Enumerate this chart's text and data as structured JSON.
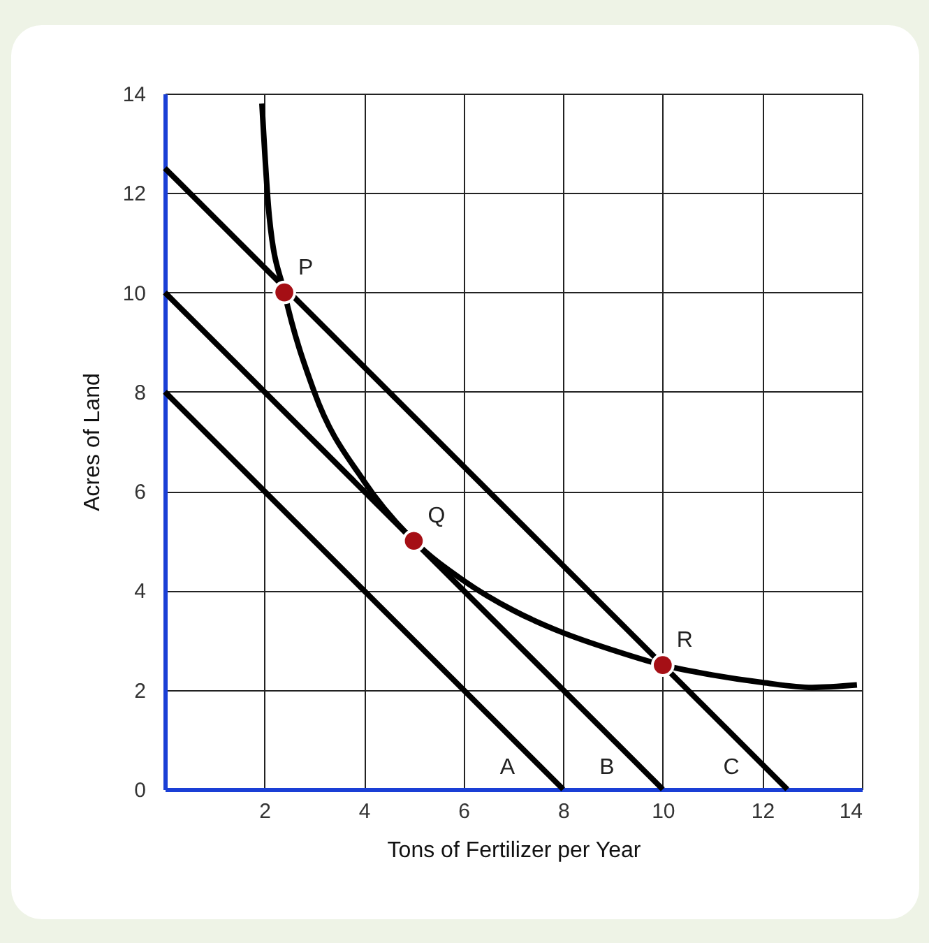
{
  "chart_data": {
    "type": "line",
    "xlabel": "Tons of Fertilizer per Year",
    "ylabel": "Acres of Land",
    "xlim": [
      0,
      14
    ],
    "ylim": [
      0,
      14
    ],
    "xticks": [
      2,
      4,
      6,
      8,
      10,
      12,
      14
    ],
    "yticks": [
      0,
      2,
      4,
      6,
      8,
      10,
      12,
      14
    ],
    "grid": true,
    "series": [
      {
        "name": "A",
        "color": "#000000",
        "x": [
          0,
          8
        ],
        "values": [
          8,
          0
        ]
      },
      {
        "name": "B",
        "color": "#000000",
        "x": [
          0,
          10
        ],
        "values": [
          10,
          0
        ]
      },
      {
        "name": "C",
        "color": "#000000",
        "x": [
          0,
          12.5
        ],
        "values": [
          12.5,
          0
        ]
      },
      {
        "color": "#000000",
        "x": [
          1.95,
          2.1,
          2.4,
          3,
          4,
          5,
          6,
          7,
          8,
          9,
          10,
          11,
          12,
          13,
          13.9
        ],
        "values": [
          13.8,
          11.5,
          10,
          8,
          6.2,
          5,
          4.2,
          3.6,
          3.15,
          2.8,
          2.5,
          2.3,
          2.15,
          2.05,
          2.1
        ]
      },
      {
        "type": "scatter",
        "color": "#a50f15",
        "marker": "circle",
        "x": [
          2.4,
          5,
          10
        ],
        "values": [
          10,
          5,
          2.5
        ]
      }
    ],
    "annotations": [
      {
        "text": "P",
        "x": 2.4,
        "y": 10
      },
      {
        "text": "Q",
        "x": 5,
        "y": 5
      },
      {
        "text": "R",
        "x": 10,
        "y": 2.5
      }
    ]
  }
}
